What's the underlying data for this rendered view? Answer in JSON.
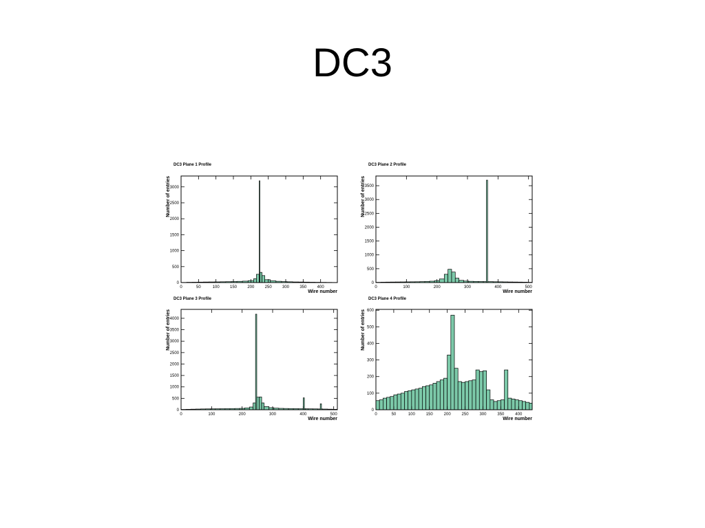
{
  "slide": {
    "title": "DC3"
  },
  "chart_data": [
    {
      "type": "histogram",
      "title": "DC3 Plane 1 Profile",
      "x_label": "Wire number",
      "y_label": "Number of entries",
      "color": "#7cc9a9",
      "bins": [
        0,
        16,
        32,
        48,
        64,
        80,
        96,
        112,
        128,
        144,
        160,
        176,
        192,
        208,
        216,
        224,
        226,
        232,
        240,
        256,
        272,
        288,
        304,
        320,
        336,
        352,
        368,
        384,
        400,
        416,
        432,
        448
      ],
      "values": [
        5,
        10,
        12,
        15,
        18,
        20,
        22,
        25,
        28,
        32,
        38,
        45,
        60,
        120,
        260,
        3190,
        320,
        220,
        90,
        55,
        40,
        30,
        25,
        20,
        18,
        15,
        12,
        10,
        8,
        6,
        4
      ],
      "xlim": [
        0,
        448
      ],
      "xticks": [
        0,
        50,
        100,
        150,
        200,
        250,
        300,
        350,
        400
      ],
      "ylim": [
        0,
        3340
      ],
      "yticks": [
        0,
        500,
        1000,
        1500,
        2000,
        2500,
        3000
      ],
      "grid": false
    },
    {
      "type": "histogram",
      "title": "DC3 Plane 2 Profile",
      "x_label": "Wire number",
      "y_label": "Number of entries",
      "color": "#7cc9a9",
      "bins": [
        0,
        16,
        32,
        48,
        64,
        80,
        96,
        112,
        128,
        144,
        160,
        176,
        192,
        208,
        224,
        236,
        248,
        260,
        272,
        288,
        304,
        320,
        336,
        352,
        362,
        366,
        384,
        400,
        416,
        432,
        448,
        464,
        480,
        496,
        512
      ],
      "values": [
        10,
        15,
        18,
        20,
        22,
        24,
        26,
        28,
        30,
        34,
        40,
        50,
        70,
        130,
        300,
        480,
        380,
        160,
        80,
        55,
        45,
        40,
        38,
        36,
        3700,
        34,
        30,
        28,
        25,
        22,
        20,
        18,
        15,
        10
      ],
      "xlim": [
        0,
        512
      ],
      "xticks": [
        0,
        100,
        200,
        300,
        400,
        500
      ],
      "ylim": [
        0,
        3850
      ],
      "yticks": [
        0,
        500,
        1000,
        1500,
        2000,
        2500,
        3000,
        3500
      ],
      "grid": false
    },
    {
      "type": "histogram",
      "title": "DC3 Plane 3 Profile",
      "x_label": "Wire number",
      "y_label": "Number of entries",
      "color": "#7cc9a9",
      "bins": [
        0,
        16,
        32,
        48,
        64,
        80,
        96,
        112,
        128,
        144,
        160,
        176,
        192,
        208,
        224,
        236,
        244,
        248,
        256,
        264,
        272,
        288,
        304,
        320,
        336,
        352,
        368,
        384,
        400,
        404,
        408,
        416,
        432,
        448,
        456,
        460,
        464,
        480,
        496,
        512
      ],
      "values": [
        15,
        20,
        25,
        30,
        35,
        38,
        40,
        42,
        45,
        48,
        50,
        55,
        60,
        80,
        120,
        300,
        4180,
        550,
        560,
        300,
        140,
        90,
        70,
        60,
        55,
        50,
        48,
        45,
        520,
        45,
        42,
        40,
        38,
        35,
        260,
        35,
        30,
        25,
        20
      ],
      "xlim": [
        0,
        512
      ],
      "xticks": [
        0,
        100,
        200,
        300,
        400,
        500
      ],
      "ylim": [
        0,
        4390
      ],
      "yticks": [
        0,
        500,
        1000,
        1500,
        2000,
        2500,
        3000,
        3500,
        4000
      ],
      "grid": false
    },
    {
      "type": "histogram",
      "title": "DC3 Plane 4 Profile",
      "x_label": "Wire number",
      "y_label": "Number of entries",
      "color": "#7cc9a9",
      "bins": [
        0,
        10,
        20,
        30,
        40,
        50,
        60,
        70,
        80,
        90,
        100,
        110,
        120,
        130,
        140,
        150,
        160,
        170,
        180,
        190,
        200,
        210,
        220,
        230,
        240,
        250,
        260,
        270,
        280,
        290,
        300,
        310,
        320,
        330,
        340,
        350,
        360,
        370,
        380,
        390,
        400,
        410,
        420,
        430,
        438
      ],
      "values": [
        55,
        60,
        70,
        75,
        80,
        90,
        95,
        100,
        110,
        115,
        120,
        125,
        130,
        140,
        145,
        150,
        160,
        170,
        180,
        190,
        330,
        570,
        250,
        170,
        165,
        170,
        175,
        180,
        240,
        230,
        235,
        120,
        60,
        50,
        55,
        60,
        240,
        70,
        65,
        60,
        55,
        50,
        45,
        40
      ],
      "xlim": [
        0,
        438
      ],
      "xticks": [
        0,
        50,
        100,
        150,
        200,
        250,
        300,
        350,
        400
      ],
      "ylim": [
        0,
        605
      ],
      "yticks": [
        0,
        100,
        200,
        300,
        400,
        500,
        600
      ],
      "grid": false
    }
  ]
}
